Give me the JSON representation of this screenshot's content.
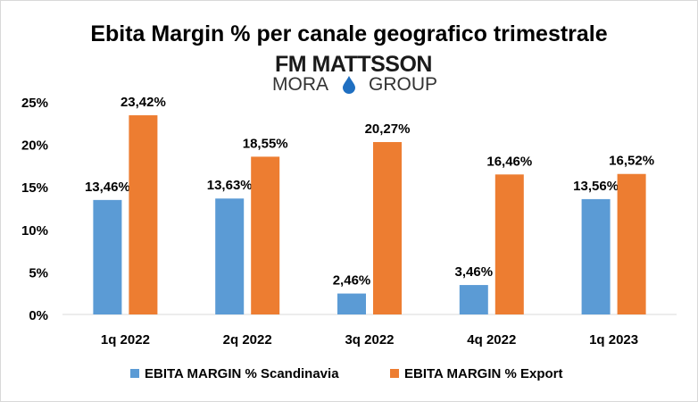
{
  "chart_data": {
    "type": "bar",
    "title": "Ebita Margin % per canale geografico trimestrale",
    "logo": {
      "line1": "FM MATTSSON",
      "line2_left": "MORA",
      "line2_right": "GROUP"
    },
    "categories": [
      "1q 2022",
      "2q 2022",
      "3q 2022",
      "4q 2022",
      "1q 2023"
    ],
    "series": [
      {
        "name": "EBITA MARGIN % Scandinavia",
        "color": "#5b9bd5",
        "values": [
          13.46,
          13.63,
          2.46,
          3.46,
          13.56
        ],
        "labels": [
          "13,46%",
          "13,63%",
          "2,46%",
          "3,46%",
          "13,56%"
        ]
      },
      {
        "name": "EBITA MARGIN % Export",
        "color": "#ed7d31",
        "values": [
          23.42,
          18.55,
          20.27,
          16.46,
          16.52
        ],
        "labels": [
          "23,42%",
          "18,55%",
          "20,27%",
          "16,46%",
          "16,52%"
        ]
      }
    ],
    "yticks": [
      "0%",
      "5%",
      "10%",
      "15%",
      "20%",
      "25%"
    ],
    "ylim": [
      0,
      25
    ],
    "xlabel": "",
    "ylabel": "",
    "grid": false,
    "legend": "bottom"
  }
}
